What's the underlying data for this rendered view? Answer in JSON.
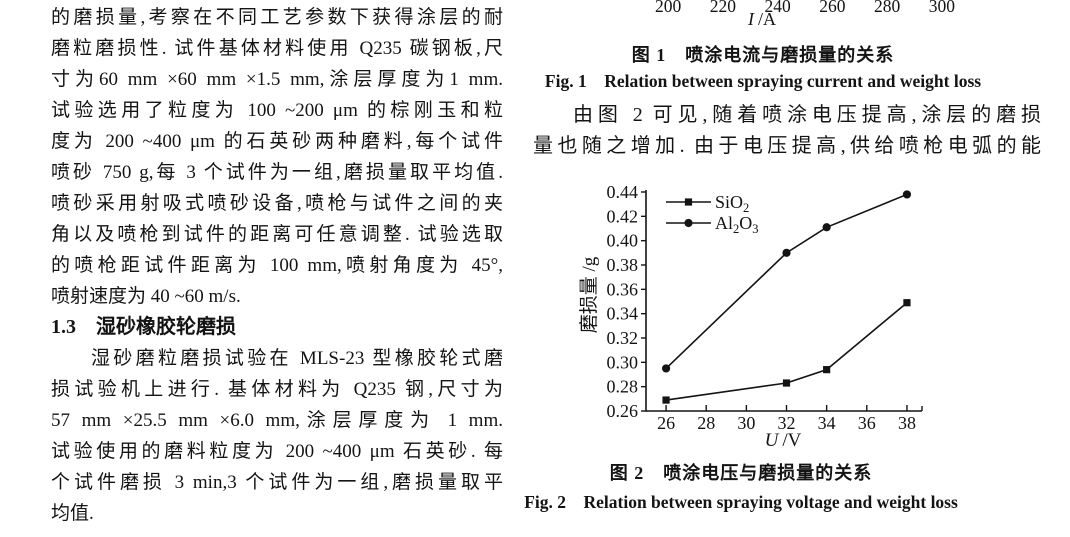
{
  "page": {
    "background": "#ffffff",
    "text_color": "#141414"
  },
  "left_column": {
    "lines": [
      "的磨损量,考察在不同工艺参数下获得涂层的耐",
      "磨粒磨损性. 试件基体材料使用 Q235 碳钢板,尺",
      "寸为60 mm ×60 mm ×1.5 mm,涂层厚度为1 mm.",
      "试验选用了粒度为 100 ~200 μm 的棕刚玉和粒",
      "度为 200 ~400 μm 的石英砂两种磨料,每个试件",
      "喷砂 750 g,每 3 个试件为一组,磨损量取平均值.",
      "喷砂采用射吸式喷砂设备,喷枪与试件之间的夹",
      "角以及喷枪到试件的距离可任意调整. 试验选取",
      "的喷枪距试件距离为 100 mm,喷射角度为 45°,",
      "喷射速度为 40 ~60 m/s.",
      "1.3　湿砂橡胶轮磨损",
      "湿砂磨粒磨损试验在 MLS-23 型橡胶轮式磨",
      "损试验机上进行. 基体材料为 Q235 钢,尺寸为",
      "57 mm ×25.5 mm ×6.0 mm,涂层厚度为 1 mm.",
      "试验使用的磨料粒度为 200 ~400 μm 石英砂. 每",
      "个试件磨损 3 min,3 个试件为一组,磨损量取平",
      "均值."
    ]
  },
  "right_column": {
    "fig1": {
      "tick_labels": [
        "200",
        "220",
        "240",
        "260",
        "280",
        "300"
      ],
      "axis_symbol": "I",
      "axis_unit": "/A",
      "caption_zh": "图 1　喷涂电流与磨损量的关系",
      "caption_en": "Fig. 1　Relation between spraying current and weight loss"
    },
    "paragraph": {
      "lines": [
        "由图 2 可见,随着喷涂电压提高,涂层的磨损",
        "量也随之增加. 由于电压提高,供给喷枪电弧的能"
      ]
    },
    "fig2": {
      "caption_zh": "图 2　喷涂电压与磨损量的关系",
      "caption_en": "Fig. 2　Relation between spraying voltage and weight loss"
    }
  },
  "chart_data": {
    "type": "line",
    "x": [
      26,
      32,
      34,
      38
    ],
    "series": [
      {
        "name": "SiO2",
        "marker": "square",
        "color": "#141414",
        "label_parts": [
          {
            "t": "SiO"
          },
          {
            "t": "2",
            "sub": true
          }
        ],
        "values": [
          0.269,
          0.283,
          0.294,
          0.349
        ]
      },
      {
        "name": "Al2O3",
        "marker": "circle",
        "color": "#141414",
        "label_parts": [
          {
            "t": "Al"
          },
          {
            "t": "2",
            "sub": true
          },
          {
            "t": "O"
          },
          {
            "t": "3",
            "sub": true
          }
        ],
        "values": [
          0.295,
          0.39,
          0.411,
          0.438
        ]
      }
    ],
    "xlabel_symbol": "U",
    "xlabel_unit": "/V",
    "ylabel": "磨损量 /g",
    "xticks": [
      26,
      28,
      30,
      32,
      34,
      36,
      38
    ],
    "yticks": [
      0.26,
      0.28,
      0.3,
      0.32,
      0.34,
      0.36,
      0.38,
      0.4,
      0.42,
      0.44
    ],
    "xlim": [
      25,
      38.75
    ],
    "ylim": [
      0.26,
      0.44
    ],
    "grid": false,
    "legend_position": "top-left"
  }
}
